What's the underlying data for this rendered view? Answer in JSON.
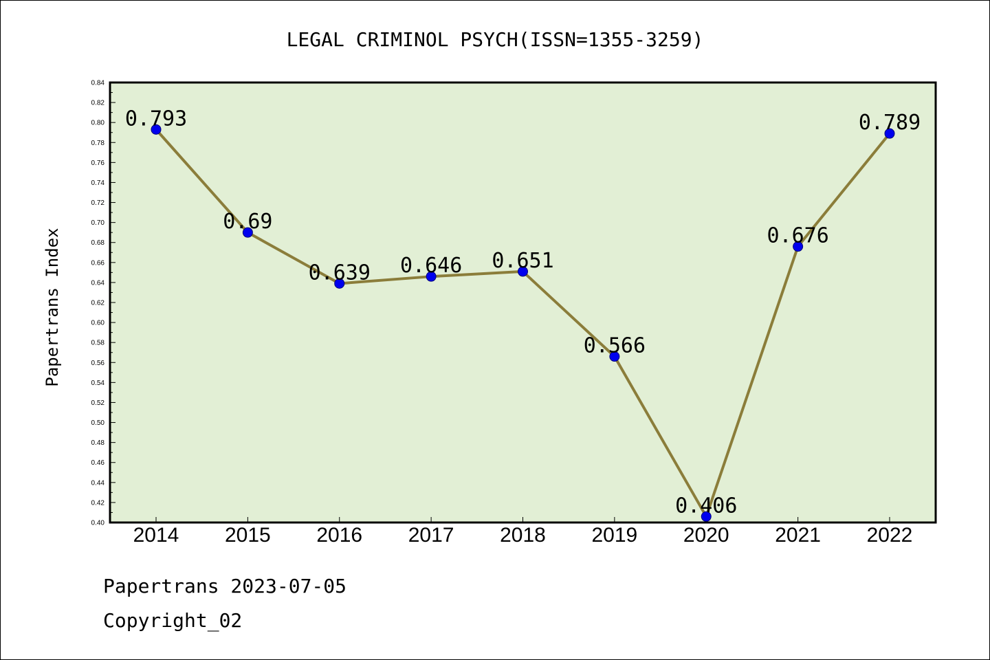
{
  "chart_data": {
    "type": "line",
    "title": "LEGAL CRIMINOL PSYCH(ISSN=1355-3259)",
    "ylabel": "Papertrans Index",
    "xlabel": "",
    "categories": [
      "2014",
      "2015",
      "2016",
      "2017",
      "2018",
      "2019",
      "2020",
      "2021",
      "2022"
    ],
    "series": [
      {
        "values": [
          0.793,
          0.69,
          0.639,
          0.646,
          0.651,
          0.566,
          0.406,
          0.676,
          0.789
        ]
      }
    ],
    "data_labels": [
      "0.793",
      "0.69",
      "0.639",
      "0.646",
      "0.651",
      "0.566",
      "0.406",
      "0.676",
      "0.789"
    ],
    "ylim": [
      0.4,
      0.84
    ],
    "yticks": [
      "0.40",
      "0.42",
      "0.44",
      "0.46",
      "0.48",
      "0.50",
      "0.52",
      "0.54",
      "0.56",
      "0.58",
      "0.60",
      "0.62",
      "0.64",
      "0.66",
      "0.68",
      "0.70",
      "0.72",
      "0.74",
      "0.76",
      "0.78",
      "0.80",
      "0.82",
      "0.84"
    ],
    "grid": false,
    "colors": {
      "line": "#8b7d3a",
      "marker": "#0000ee",
      "plot_background": "#e2efd5"
    }
  },
  "footer": {
    "date_text": "Papertrans 2023-07-05",
    "copyright_text": "Copyright_02"
  }
}
